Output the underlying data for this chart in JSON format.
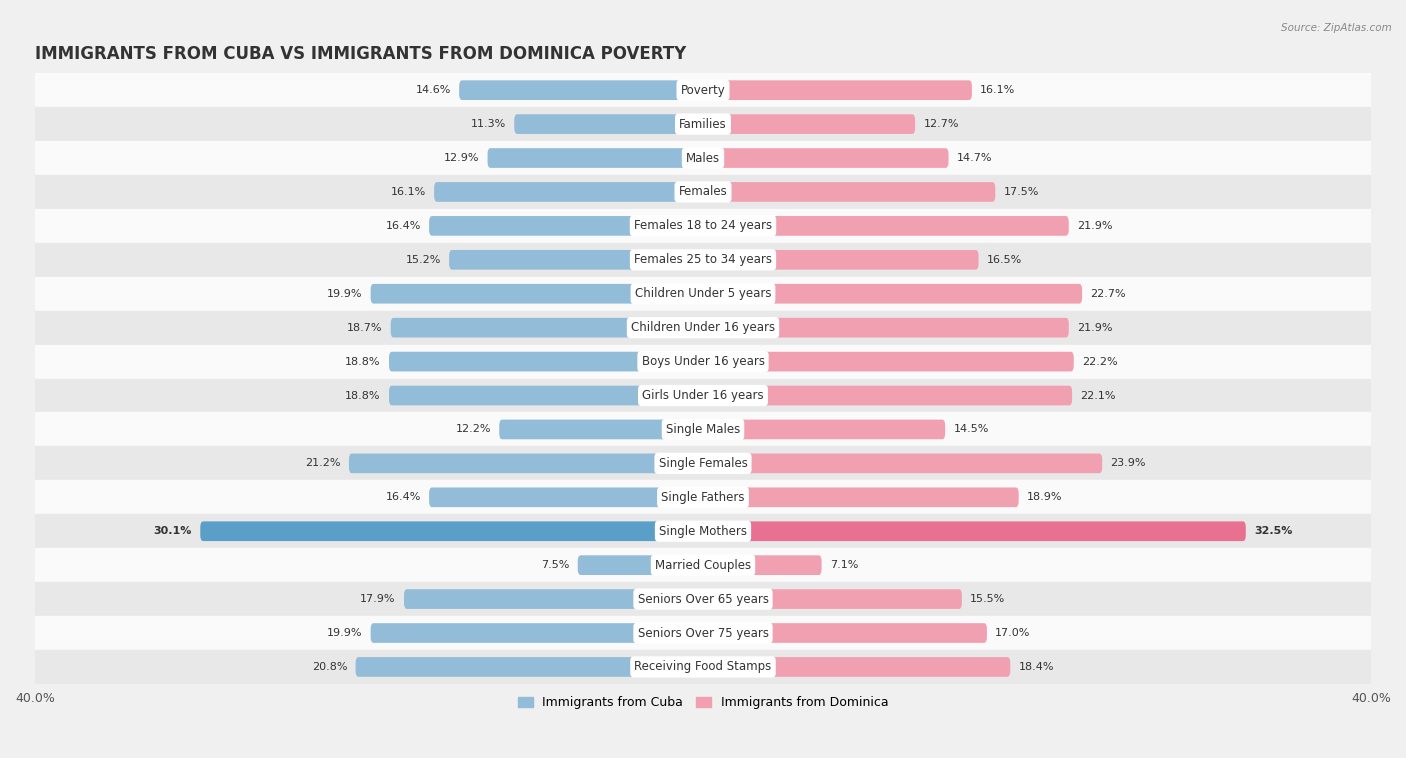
{
  "title": "IMMIGRANTS FROM CUBA VS IMMIGRANTS FROM DOMINICA POVERTY",
  "source": "Source: ZipAtlas.com",
  "categories": [
    "Poverty",
    "Families",
    "Males",
    "Females",
    "Females 18 to 24 years",
    "Females 25 to 34 years",
    "Children Under 5 years",
    "Children Under 16 years",
    "Boys Under 16 years",
    "Girls Under 16 years",
    "Single Males",
    "Single Females",
    "Single Fathers",
    "Single Mothers",
    "Married Couples",
    "Seniors Over 65 years",
    "Seniors Over 75 years",
    "Receiving Food Stamps"
  ],
  "cuba_values": [
    14.6,
    11.3,
    12.9,
    16.1,
    16.4,
    15.2,
    19.9,
    18.7,
    18.8,
    18.8,
    12.2,
    21.2,
    16.4,
    30.1,
    7.5,
    17.9,
    19.9,
    20.8
  ],
  "dominica_values": [
    16.1,
    12.7,
    14.7,
    17.5,
    21.9,
    16.5,
    22.7,
    21.9,
    22.2,
    22.1,
    14.5,
    23.9,
    18.9,
    32.5,
    7.1,
    15.5,
    17.0,
    18.4
  ],
  "cuba_color": "#92bcd8",
  "dominica_color": "#f0a0b0",
  "highlight_cuba_color": "#5a9fc8",
  "highlight_dominica_color": "#e87090",
  "background_color": "#f0f0f0",
  "row_color_light": "#fafafa",
  "row_color_dark": "#e8e8e8",
  "xlim": 40.0,
  "legend_cuba": "Immigrants from Cuba",
  "legend_dominica": "Immigrants from Dominica",
  "title_fontsize": 12,
  "label_fontsize": 8.5,
  "value_fontsize": 8,
  "bar_height": 0.58
}
